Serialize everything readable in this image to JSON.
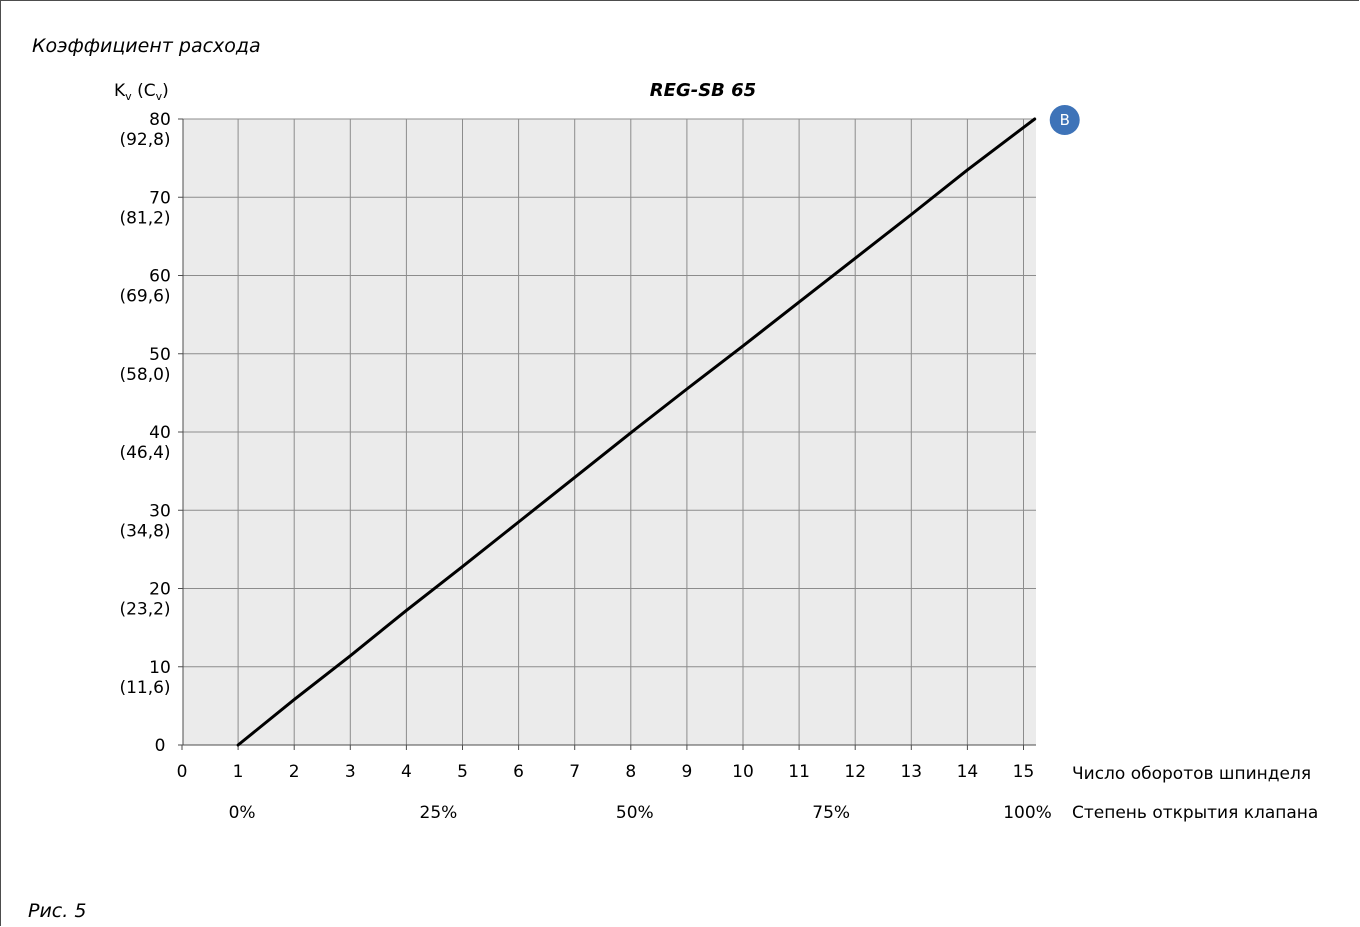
{
  "figure": {
    "section_title": "Коэффициент расхода",
    "caption": "Рис. 5",
    "badge_label": "B"
  },
  "chart_data": {
    "type": "line",
    "title": "REG-SB 65",
    "ylabel_main": "K",
    "ylabel_sub_v": "v",
    "ylabel_paren_open": " (C",
    "ylabel_paren_close": ")",
    "xlabel": "Число оборотов шпинделя",
    "secondary_xlabel": "Степень открытия клапана",
    "xlim": [
      0,
      15.3
    ],
    "ylim": [
      0,
      80
    ],
    "x_ticks": [
      "0",
      "1",
      "2",
      "3",
      "4",
      "5",
      "6",
      "7",
      "8",
      "9",
      "10",
      "11",
      "12",
      "13",
      "14",
      "15"
    ],
    "y_ticks": [
      {
        "value": 0,
        "label": "0",
        "alt": ""
      },
      {
        "value": 10,
        "label": "10",
        "alt": "(11,6)"
      },
      {
        "value": 20,
        "label": "20",
        "alt": "(23,2)"
      },
      {
        "value": 30,
        "label": "30",
        "alt": "(34,8)"
      },
      {
        "value": 40,
        "label": "40",
        "alt": "(46,4)"
      },
      {
        "value": 50,
        "label": "50",
        "alt": "(58,0)"
      },
      {
        "value": 60,
        "label": "60",
        "alt": "(69,6)"
      },
      {
        "value": 70,
        "label": "70",
        "alt": "(81,2)"
      },
      {
        "value": 80,
        "label": "80",
        "alt": "(92,8)"
      }
    ],
    "secondary_ticks": [
      {
        "x": 1,
        "label": "0%"
      },
      {
        "x": 4.5,
        "label": "25%"
      },
      {
        "x": 8,
        "label": "50%"
      },
      {
        "x": 11.5,
        "label": "75%"
      },
      {
        "x": 15,
        "label": "100%"
      }
    ],
    "series": [
      {
        "x": [
          1,
          2,
          3,
          4,
          5,
          6,
          7,
          8,
          9,
          10,
          11,
          12,
          13,
          14,
          15.2
        ],
        "values": [
          0,
          5.8,
          11.4,
          17.2,
          22.8,
          28.5,
          34.2,
          39.9,
          45.5,
          51.0,
          56.6,
          62.2,
          67.8,
          73.5,
          80
        ],
        "color": "#000000"
      }
    ],
    "grid": true,
    "plot_background": "#ebebeb",
    "grid_color": "#8c8c8c",
    "badge_color": "#3e73b8",
    "badge_point": {
      "x": 15.2,
      "y": 80
    }
  }
}
